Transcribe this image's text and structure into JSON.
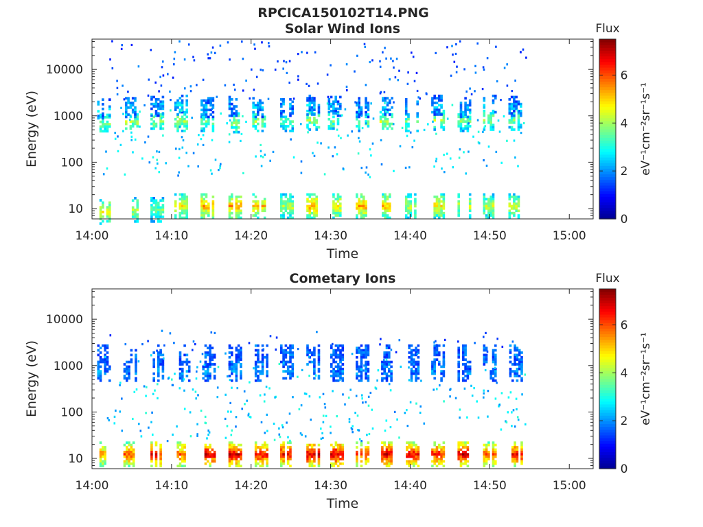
{
  "figure": {
    "title": "RPCICA150102T14.PNG"
  },
  "colormap": [
    "#00008f",
    "#0000ff",
    "#0080ff",
    "#00ffff",
    "#80ff80",
    "#ffff00",
    "#ff8000",
    "#ff0000",
    "#800000"
  ],
  "chart_data": [
    {
      "type": "heatmap",
      "title": "Solar Wind Ions",
      "xlabel": "Time",
      "ylabel": "Energy (eV)",
      "x_ticks": [
        "14:00",
        "14:10",
        "14:20",
        "14:30",
        "14:40",
        "14:50",
        "15:00"
      ],
      "y_ticks": [
        "10",
        "100",
        "1000",
        "10000"
      ],
      "yscale": "log",
      "ylim": [
        6,
        45000
      ],
      "xlim_minutes": [
        0,
        63
      ],
      "colorbar": {
        "label": "Flux",
        "units": "eV⁻¹cm⁻²sr⁻¹s⁻¹",
        "ticks": [
          "0",
          "2",
          "4",
          "6"
        ],
        "range": [
          0,
          7.5
        ]
      },
      "data_end_minute": 54.5,
      "bursts": [
        {
          "t": 1.5,
          "bands": [
            [
              9,
              4.5
            ],
            [
              700,
              3.6
            ],
            [
              1500,
              2.4
            ]
          ]
        },
        {
          "t": 5.0,
          "bands": [
            [
              10,
              4.0
            ],
            [
              800,
              3.8
            ],
            [
              1600,
              2.2
            ]
          ]
        },
        {
          "t": 8.2,
          "bands": [
            [
              10,
              3.5
            ],
            [
              800,
              3.6
            ],
            [
              1700,
              2.0
            ]
          ]
        },
        {
          "t": 11.2,
          "bands": [
            [
              12,
              4.5
            ],
            [
              800,
              3.8
            ],
            [
              1800,
              2.5
            ]
          ]
        },
        {
          "t": 14.5,
          "bands": [
            [
              12,
              5.0
            ],
            [
              800,
              3.6
            ],
            [
              1600,
              2.0
            ]
          ]
        },
        {
          "t": 18.0,
          "bands": [
            [
              12,
              5.0
            ],
            [
              750,
              3.8
            ],
            [
              1700,
              2.0
            ]
          ]
        },
        {
          "t": 21.0,
          "bands": [
            [
              12,
              4.8
            ],
            [
              800,
              3.8
            ],
            [
              1600,
              2.2
            ]
          ]
        },
        {
          "t": 24.5,
          "bands": [
            [
              12,
              4.0
            ],
            [
              800,
              3.2
            ],
            [
              1700,
              2.0
            ]
          ]
        },
        {
          "t": 27.8,
          "bands": [
            [
              12,
              5.0
            ],
            [
              850,
              3.8
            ],
            [
              1800,
              2.2
            ]
          ]
        },
        {
          "t": 30.5,
          "bands": [
            [
              12,
              4.5
            ],
            [
              800,
              3.4
            ],
            [
              1700,
              2.0
            ]
          ]
        },
        {
          "t": 34.0,
          "bands": [
            [
              12,
              5.0
            ],
            [
              800,
              3.4
            ],
            [
              1600,
              2.0
            ]
          ]
        },
        {
          "t": 37.0,
          "bands": [
            [
              12,
              4.8
            ],
            [
              800,
              4.0
            ],
            [
              1800,
              2.2
            ]
          ]
        },
        {
          "t": 40.2,
          "bands": [
            [
              12,
              4.0
            ],
            [
              800,
              3.4
            ],
            [
              1700,
              2.0
            ]
          ]
        },
        {
          "t": 43.5,
          "bands": [
            [
              12,
              4.5
            ],
            [
              850,
              3.8
            ],
            [
              1800,
              2.2
            ]
          ]
        },
        {
          "t": 46.8,
          "bands": [
            [
              12,
              4.0
            ],
            [
              800,
              3.4
            ],
            [
              1600,
              2.0
            ]
          ]
        },
        {
          "t": 50.0,
          "bands": [
            [
              12,
              4.0
            ],
            [
              850,
              3.8
            ],
            [
              1800,
              2.2
            ]
          ]
        },
        {
          "t": 53.2,
          "bands": [
            [
              12,
              4.0
            ],
            [
              850,
              3.4
            ],
            [
              1700,
              2.0
            ]
          ]
        }
      ]
    },
    {
      "type": "heatmap",
      "title": "Cometary Ions",
      "xlabel": "Time",
      "ylabel": "Energy (eV)",
      "x_ticks": [
        "14:00",
        "14:10",
        "14:20",
        "14:30",
        "14:40",
        "14:50",
        "15:00"
      ],
      "y_ticks": [
        "10",
        "100",
        "1000",
        "10000"
      ],
      "yscale": "log",
      "ylim": [
        6,
        45000
      ],
      "xlim_minutes": [
        0,
        63
      ],
      "colorbar": {
        "label": "Flux",
        "units": "eV⁻¹cm⁻²sr⁻¹s⁻¹",
        "ticks": [
          "0",
          "2",
          "4",
          "6"
        ],
        "range": [
          0,
          7.5
        ]
      },
      "data_end_minute": 54.5,
      "bursts": [
        {
          "t": 1.5,
          "bands": [
            [
              13,
              5.2
            ],
            [
              800,
              1.8
            ],
            [
              1800,
              1.5
            ]
          ]
        },
        {
          "t": 4.8,
          "bands": [
            [
              13,
              5.6
            ],
            [
              800,
              1.8
            ],
            [
              1800,
              1.5
            ]
          ]
        },
        {
          "t": 8.2,
          "bands": [
            [
              13,
              6.2
            ],
            [
              800,
              1.8
            ],
            [
              1800,
              1.5
            ]
          ]
        },
        {
          "t": 11.5,
          "bands": [
            [
              13,
              5.6
            ],
            [
              800,
              1.8
            ],
            [
              1800,
              1.5
            ]
          ]
        },
        {
          "t": 14.7,
          "bands": [
            [
              13,
              6.5
            ],
            [
              800,
              1.8
            ],
            [
              1800,
              1.5
            ]
          ]
        },
        {
          "t": 18.0,
          "bands": [
            [
              13,
              6.5
            ],
            [
              800,
              1.8
            ],
            [
              1800,
              1.5
            ]
          ]
        },
        {
          "t": 21.3,
          "bands": [
            [
              13,
              6.2
            ],
            [
              800,
              1.8
            ],
            [
              1800,
              1.5
            ]
          ]
        },
        {
          "t": 24.5,
          "bands": [
            [
              13,
              6.2
            ],
            [
              800,
              1.8
            ],
            [
              1800,
              1.5
            ]
          ]
        },
        {
          "t": 27.8,
          "bands": [
            [
              13,
              6.5
            ],
            [
              800,
              1.8
            ],
            [
              1800,
              1.5
            ]
          ]
        },
        {
          "t": 30.8,
          "bands": [
            [
              13,
              6.5
            ],
            [
              800,
              1.8
            ],
            [
              1800,
              1.5
            ]
          ]
        },
        {
          "t": 34.0,
          "bands": [
            [
              13,
              6.0
            ],
            [
              800,
              1.8
            ],
            [
              1800,
              1.5
            ]
          ]
        },
        {
          "t": 37.2,
          "bands": [
            [
              13,
              6.5
            ],
            [
              800,
              1.8
            ],
            [
              1800,
              1.5
            ]
          ]
        },
        {
          "t": 40.3,
          "bands": [
            [
              13,
              6.2
            ],
            [
              800,
              1.8
            ],
            [
              1800,
              1.5
            ]
          ]
        },
        {
          "t": 43.5,
          "bands": [
            [
              13,
              6.0
            ],
            [
              800,
              1.8
            ],
            [
              1800,
              1.5
            ]
          ]
        },
        {
          "t": 46.8,
          "bands": [
            [
              13,
              6.5
            ],
            [
              800,
              1.8
            ],
            [
              1800,
              1.5
            ]
          ]
        },
        {
          "t": 50.0,
          "bands": [
            [
              13,
              5.6
            ],
            [
              800,
              1.8
            ],
            [
              1800,
              1.5
            ]
          ]
        },
        {
          "t": 53.3,
          "bands": [
            [
              13,
              6.2
            ],
            [
              800,
              1.8
            ],
            [
              1800,
              1.5
            ]
          ]
        }
      ]
    }
  ]
}
